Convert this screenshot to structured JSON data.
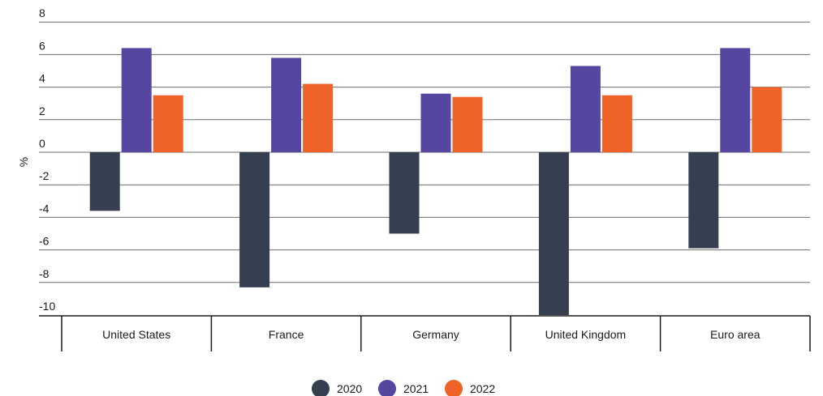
{
  "chart_data": {
    "type": "bar",
    "title": "",
    "xlabel": "",
    "ylabel": "%",
    "ylim": [
      -10,
      8
    ],
    "yticks": [
      8,
      6,
      4,
      2,
      0,
      -2,
      -4,
      -6,
      -8,
      -10
    ],
    "ytick_labels": [
      "8",
      "6",
      "4",
      "2",
      "0",
      "-2",
      "-4",
      "-6",
      "-8",
      "-10"
    ],
    "grid": true,
    "legend_position": "bottom-center",
    "categories": [
      "United States",
      "France",
      "Germany",
      "United Kingdom",
      "Euro area"
    ],
    "series": [
      {
        "name": "2020",
        "color": "#353f4f",
        "values": [
          -3.6,
          -8.3,
          -5.0,
          -10.0,
          -5.9
        ]
      },
      {
        "name": "2021",
        "color": "#5646a0",
        "values": [
          6.4,
          5.8,
          3.6,
          5.3,
          6.4
        ]
      },
      {
        "name": "2022",
        "color": "#ef6329",
        "values": [
          3.5,
          4.2,
          3.4,
          3.5,
          4.0
        ]
      }
    ]
  }
}
